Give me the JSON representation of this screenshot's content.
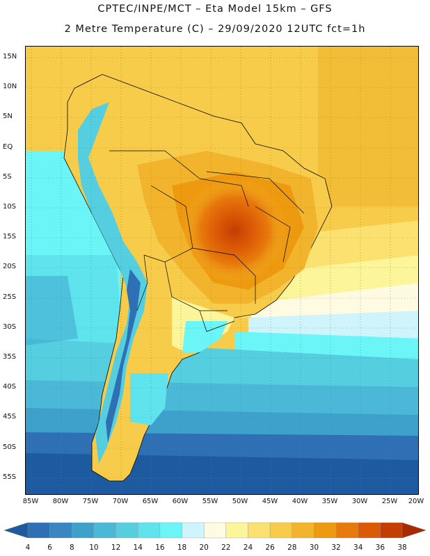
{
  "title": {
    "line1": "CPTEC/INPE/MCT –  Eta Model 15km – GFS",
    "line2": "2 Metre Temperature (C) – 29/09/2020 12UTC fct=1h"
  },
  "axes": {
    "lat_labels": [
      "15N",
      "10N",
      "5N",
      "EQ",
      "5S",
      "10S",
      "15S",
      "20S",
      "25S",
      "30S",
      "35S",
      "40S",
      "45S",
      "50S",
      "55S"
    ],
    "lon_labels": [
      "85W",
      "80W",
      "75W",
      "70W",
      "65W",
      "60W",
      "55W",
      "50W",
      "45W",
      "40W",
      "35W",
      "30W",
      "25W",
      "20W"
    ]
  },
  "colorbar": {
    "labels": [
      "4",
      "6",
      "8",
      "10",
      "12",
      "14",
      "16",
      "18",
      "20",
      "22",
      "24",
      "26",
      "28",
      "30",
      "32",
      "34",
      "36",
      "38"
    ],
    "colors": [
      "#1e5aa0",
      "#2f6fb4",
      "#3a86c1",
      "#3ea1cc",
      "#4bb8d8",
      "#55cfe0",
      "#5fe3ec",
      "#6cf5f7",
      "#cff4fc",
      "#fefbe2",
      "#fdf59a",
      "#fbe170",
      "#f6cc4a",
      "#f2b42c",
      "#ee9a10",
      "#e87a0c",
      "#dc5a06",
      "#c43e02",
      "#a82a00"
    ]
  }
}
